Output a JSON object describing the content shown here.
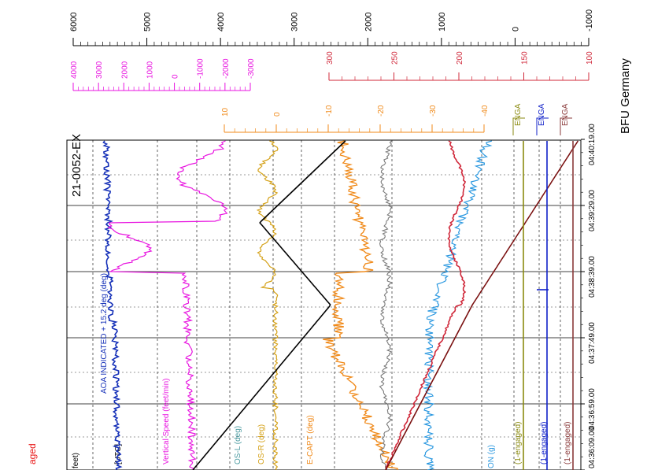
{
  "title": "21-0052-EX",
  "source": "BFU Germany",
  "time_unit": "[UTC]",
  "partial_label": "aged",
  "colors": {
    "aoa": "#1530b8",
    "vertical_speed": "#e815e0",
    "pos_l": "#4a9aa0",
    "pos_r": "#d4a015",
    "pitch_capt": "#f08a1a",
    "grey": "#7a7a7a",
    "altitude": "#000000",
    "accel": "#2a98e0",
    "red_trace": "#d0283a",
    "darkred": "#7a1010",
    "eng_olive": "#8a8a10",
    "eng_blue": "#1020c8",
    "eng_brown": "#8a3a3a",
    "axis_black": "#000000",
    "axis_red": "#d0283a",
    "axis_orange": "#f08a1a",
    "axis_magenta": "#e815e0"
  },
  "chart_data": {
    "type": "line",
    "orientation": "rotated",
    "time_axis": {
      "ticks": [
        "04:36:09.00",
        "04:36:59.00",
        "04:37:49.00",
        "04:38:39.00",
        "04:39:29.00",
        "04:40:19.00"
      ],
      "range": [
        "04:36:09",
        "04:40:30"
      ]
    },
    "scales": [
      {
        "id": "black",
        "ticks": [
          "6000",
          "5000",
          "4000",
          "3000",
          "2000",
          "1000",
          "0",
          "-1000"
        ],
        "range": [
          6000,
          -1000
        ]
      },
      {
        "id": "magenta",
        "ticks": [
          "4000",
          "3000",
          "2000",
          "1000",
          "0",
          "-1000",
          "-2000",
          "-3000"
        ],
        "range": [
          4000,
          -3000
        ]
      },
      {
        "id": "red",
        "ticks": [
          "300",
          "250",
          "200",
          "150",
          "100"
        ],
        "range": [
          300,
          100
        ]
      },
      {
        "id": "orange",
        "ticks": [
          "10",
          "0",
          "-10",
          "-20",
          "-30",
          "-40"
        ],
        "range": [
          10,
          -40
        ]
      }
    ],
    "engaged_scales": [
      {
        "label": "ENGA",
        "color": "olive"
      },
      {
        "label": "ENGA",
        "color": "blue"
      },
      {
        "label": "ENGA",
        "color": "brown"
      }
    ],
    "series": [
      {
        "name": "AOA INDICATED + 15.2 deg (deg)",
        "band": 1
      },
      {
        "name": "Vertical Speed (feet/min)",
        "band": 2
      },
      {
        "name": "OS-L (deg)",
        "band": 3
      },
      {
        "name": "OS-R (deg)",
        "band": 4
      },
      {
        "name": "E-CAPT (deg)",
        "band": 5
      },
      {
        "name": "feet)",
        "band": 0
      },
      {
        "name": "ON (g)",
        "band": 6
      },
      {
        "name": "(1-engaged)",
        "band": 7
      },
      {
        "name": "(1-engaged)",
        "band": 8
      },
      {
        "name": "(1-engaged)",
        "band": 9
      }
    ],
    "engaged_events": [
      {
        "trace": "olive",
        "engaged_all": true
      },
      {
        "trace": "blue",
        "switch_time": "04:38:30",
        "after": "01:00"
      },
      {
        "trace": "brown",
        "engaged_all": true
      }
    ]
  }
}
